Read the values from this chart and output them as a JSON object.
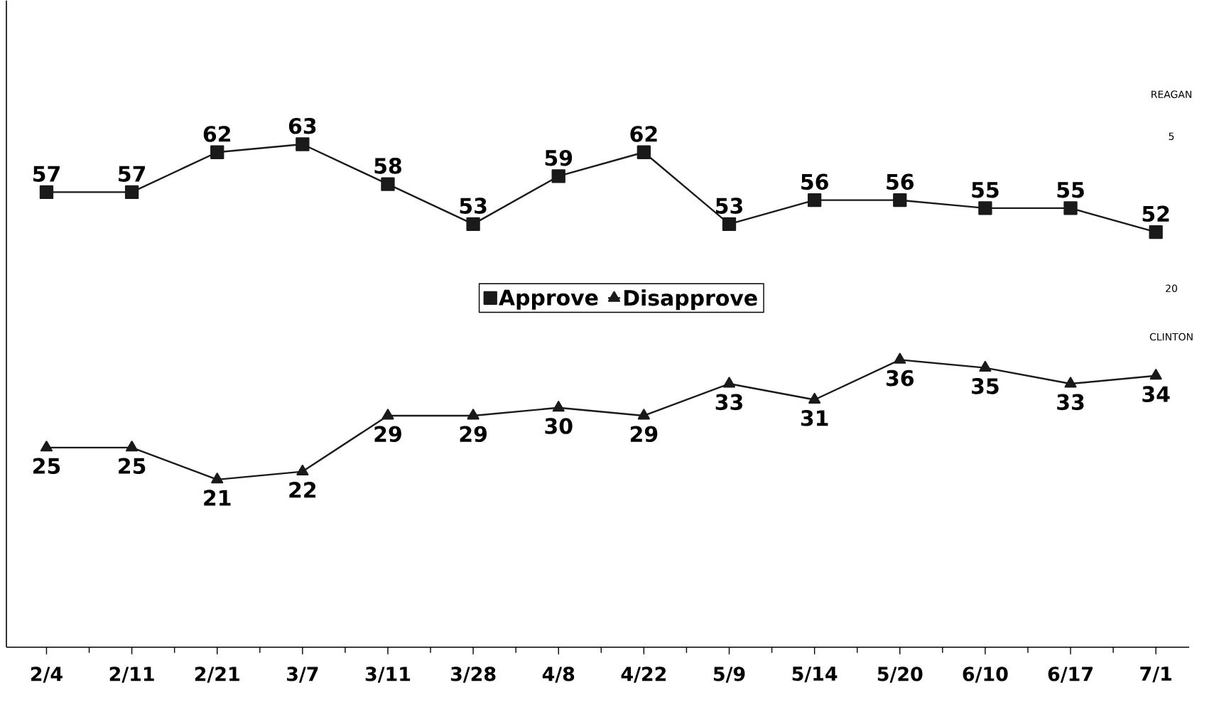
{
  "chart_data": {
    "type": "line",
    "categories": [
      "2/4",
      "2/11",
      "2/21",
      "3/7",
      "3/11",
      "3/28",
      "4/8",
      "4/22",
      "5/9",
      "5/14",
      "5/20",
      "6/10",
      "6/17",
      "7/1"
    ],
    "series": [
      {
        "name": "Approve",
        "color": "#1a1a1a",
        "marker": "square",
        "values": [
          57,
          57,
          62,
          63,
          58,
          53,
          59,
          62,
          53,
          56,
          56,
          55,
          55,
          52
        ]
      },
      {
        "name": "Disapprove",
        "color": "#1a1a1a",
        "marker": "triangle",
        "values": [
          25,
          25,
          21,
          22,
          29,
          29,
          30,
          29,
          33,
          31,
          36,
          35,
          33,
          34
        ]
      }
    ],
    "ylim": [
      0,
      81
    ],
    "tick_labels": "x",
    "data_labels": true,
    "legend": "center",
    "grid": false,
    "line_style": "solid",
    "annotations": [
      "REAGAN",
      "5",
      "20",
      "CLINTON"
    ]
  }
}
